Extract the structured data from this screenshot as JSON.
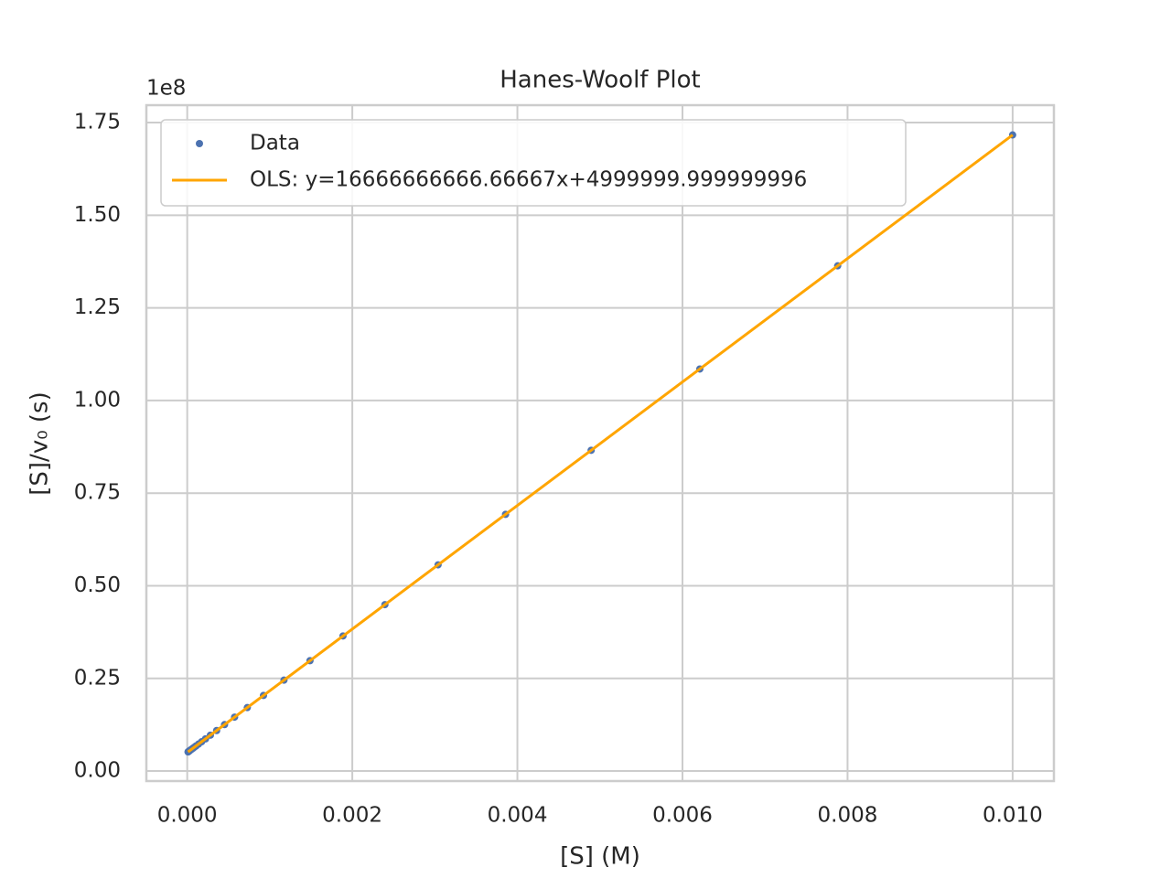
{
  "chart_data": {
    "type": "scatter",
    "title": "Hanes-Woolf Plot",
    "x_label": "[S] (M)",
    "y_label": "[S]/v₀ (s)",
    "y_offset_text": "1e8",
    "xlim": [
      -0.000495,
      0.0105
    ],
    "ylim": [
      -2700000,
      179700000
    ],
    "xticks": [
      {
        "value": 0,
        "label": "0.000"
      },
      {
        "value": 0.002,
        "label": "0.002"
      },
      {
        "value": 0.004,
        "label": "0.004"
      },
      {
        "value": 0.006,
        "label": "0.006"
      },
      {
        "value": 0.008,
        "label": "0.008"
      },
      {
        "value": 0.01,
        "label": "0.010"
      }
    ],
    "yticks": [
      {
        "value": 0,
        "label": "0.00"
      },
      {
        "value": 25000000,
        "label": "0.25"
      },
      {
        "value": 50000000,
        "label": "0.50"
      },
      {
        "value": 75000000,
        "label": "0.75"
      },
      {
        "value": 100000000,
        "label": "1.00"
      },
      {
        "value": 125000000,
        "label": "1.25"
      },
      {
        "value": 150000000,
        "label": "1.50"
      },
      {
        "value": 175000000,
        "label": "1.75"
      }
    ],
    "grid": true,
    "legend": "upper left",
    "series": [
      {
        "name": "Data",
        "kind": "scatter",
        "color": "#4c72b0",
        "x": [
          1e-05,
          1.269e-05,
          1.6103e-05,
          2.0434e-05,
          2.593e-05,
          3.2903e-05,
          4.1753e-05,
          5.2983e-05,
          6.7234e-05,
          8.5317e-05,
          0.00010826,
          0.00013738,
          0.00017433,
          0.00022122,
          0.00028072,
          0.00035622,
          0.00045204,
          0.00057362,
          0.0007279,
          0.00092367,
          0.0011721,
          0.0014874,
          0.0018874,
          0.002395,
          0.0030392,
          0.0038566,
          0.0048939,
          0.0062102,
          0.0078805,
          0.01
        ],
        "values": [
          5166667,
          5211500,
          5268383,
          5340567,
          5432150,
          5548383,
          5695883,
          5883050,
          6120567,
          6421950,
          6804333,
          7289667,
          7905500,
          8687000,
          9678667,
          10937000,
          12534000,
          14560333,
          17131667,
          20394500,
          24535000,
          29790000,
          36456667,
          44916667,
          55653333,
          69276667,
          86565000,
          108503333,
          136341667,
          171666667
        ]
      },
      {
        "name": "OLS: y=16666666666.66667x+4999999.999999996",
        "kind": "line",
        "color": "#ffa500",
        "x": [
          1e-05,
          0.01
        ],
        "values": [
          5166667,
          171666667
        ]
      }
    ]
  }
}
